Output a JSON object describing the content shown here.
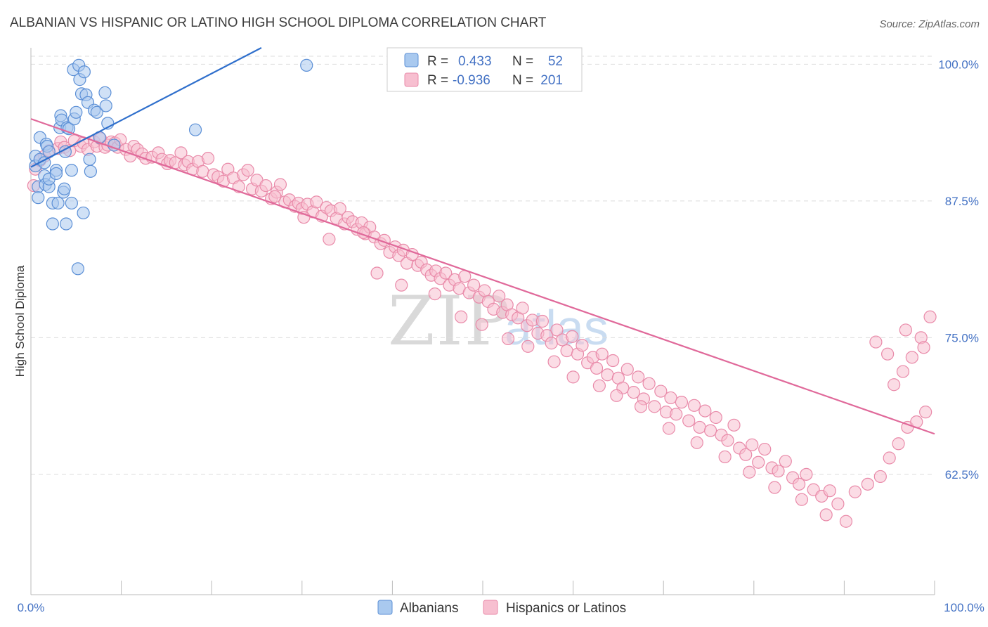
{
  "header": {
    "title": "ALBANIAN VS HISPANIC OR LATINO HIGH SCHOOL DIPLOMA CORRELATION CHART",
    "source": "Source: ZipAtlas.com"
  },
  "watermark": {
    "zip": "ZIP",
    "atlas": "atlas"
  },
  "colors": {
    "albanian_fill": "#a9c9ef",
    "albanian_stroke": "#5b8fd6",
    "albanian_line": "#2f6fcc",
    "hispanic_fill": "#f7bfd0",
    "hispanic_stroke": "#e98aa9",
    "hispanic_line": "#e0699a",
    "tick_label": "#4472c4",
    "grid": "#dddddd"
  },
  "legend_box": {
    "rows": [
      {
        "r_label": "R =",
        "r_value": "0.433",
        "n_label": "N =",
        "n_value": "52"
      },
      {
        "r_label": "R =",
        "r_value": "-0.936",
        "n_label": "N =",
        "n_value": "201"
      }
    ]
  },
  "bottom_legend": {
    "items": [
      "Albanians",
      "Hispanics or Latinos"
    ]
  },
  "chart_data": {
    "type": "scatter",
    "title": "ALBANIAN VS HISPANIC OR LATINO HIGH SCHOOL DIPLOMA CORRELATION CHART",
    "xlabel": "",
    "ylabel": "High School Diploma",
    "xlim": [
      0,
      100
    ],
    "ylim": [
      51.5,
      101.5
    ],
    "x_tick_labels": [
      "0.0%",
      "100.0%"
    ],
    "y_ticks": [
      100.0,
      87.5,
      75.0,
      62.5
    ],
    "y_tick_labels": [
      "100.0%",
      "87.5%",
      "75.0%",
      "62.5%"
    ],
    "grid": true,
    "legend_position": "top-center",
    "series": [
      {
        "name": "Albanians",
        "r": 0.433,
        "n": 52,
        "trend": {
          "x": [
            0,
            25.5
          ],
          "y": [
            90.6,
            101.5
          ]
        },
        "points": [
          [
            0.5,
            91.6
          ],
          [
            0.5,
            90.7
          ],
          [
            0.8,
            88.8
          ],
          [
            0.8,
            87.8
          ],
          [
            1.0,
            91.3
          ],
          [
            1.0,
            93.3
          ],
          [
            1.5,
            91.0
          ],
          [
            1.5,
            89.8
          ],
          [
            1.6,
            89.0
          ],
          [
            1.7,
            92.7
          ],
          [
            1.8,
            92.5
          ],
          [
            2.0,
            88.8
          ],
          [
            2.0,
            89.5
          ],
          [
            2.0,
            92.0
          ],
          [
            2.4,
            87.3
          ],
          [
            2.4,
            85.4
          ],
          [
            2.8,
            90.3
          ],
          [
            2.8,
            90.0
          ],
          [
            3.0,
            87.3
          ],
          [
            3.2,
            94.2
          ],
          [
            3.3,
            95.3
          ],
          [
            3.4,
            94.9
          ],
          [
            3.6,
            88.3
          ],
          [
            3.7,
            88.6
          ],
          [
            3.8,
            92.0
          ],
          [
            3.9,
            85.4
          ],
          [
            4.0,
            94.2
          ],
          [
            4.2,
            94.1
          ],
          [
            4.5,
            87.3
          ],
          [
            4.5,
            90.3
          ],
          [
            4.7,
            99.5
          ],
          [
            4.8,
            95.0
          ],
          [
            5.0,
            95.6
          ],
          [
            5.3,
            99.9
          ],
          [
            5.4,
            98.6
          ],
          [
            5.6,
            97.3
          ],
          [
            5.8,
            86.4
          ],
          [
            5.9,
            99.3
          ],
          [
            6.1,
            97.2
          ],
          [
            6.3,
            96.5
          ],
          [
            6.5,
            91.3
          ],
          [
            6.6,
            90.2
          ],
          [
            7.0,
            95.8
          ],
          [
            7.3,
            95.6
          ],
          [
            7.6,
            93.3
          ],
          [
            8.2,
            97.4
          ],
          [
            8.3,
            96.2
          ],
          [
            8.5,
            94.6
          ],
          [
            9.2,
            92.6
          ],
          [
            18.2,
            94.0
          ],
          [
            30.5,
            99.9
          ],
          [
            5.2,
            81.3
          ]
        ]
      },
      {
        "name": "Hispanics or Latinos",
        "r": -0.936,
        "n": 201,
        "trend": {
          "x": [
            0,
            100
          ],
          "y": [
            95.0,
            66.2
          ]
        },
        "points": [
          [
            0.3,
            88.9
          ],
          [
            0.5,
            90.4
          ],
          [
            1.0,
            91.2
          ],
          [
            1.5,
            91.6
          ],
          [
            2.0,
            92.1
          ],
          [
            3.0,
            92.3
          ],
          [
            3.3,
            92.9
          ],
          [
            3.7,
            92.4
          ],
          [
            4.3,
            92.1
          ],
          [
            4.8,
            93.0
          ],
          [
            5.5,
            92.5
          ],
          [
            5.8,
            92.8
          ],
          [
            6.3,
            92.2
          ],
          [
            7.0,
            92.9
          ],
          [
            7.3,
            92.5
          ],
          [
            7.7,
            93.2
          ],
          [
            8.2,
            92.4
          ],
          [
            8.5,
            92.6
          ],
          [
            8.9,
            92.9
          ],
          [
            9.3,
            92.8
          ],
          [
            9.6,
            92.4
          ],
          [
            9.9,
            93.1
          ],
          [
            10.5,
            92.2
          ],
          [
            11.0,
            91.6
          ],
          [
            11.4,
            92.5
          ],
          [
            11.8,
            92.2
          ],
          [
            12.3,
            91.8
          ],
          [
            12.7,
            91.4
          ],
          [
            13.4,
            91.5
          ],
          [
            14.1,
            91.9
          ],
          [
            14.5,
            91.3
          ],
          [
            15.1,
            90.9
          ],
          [
            15.4,
            91.2
          ],
          [
            16.0,
            91.0
          ],
          [
            16.6,
            91.9
          ],
          [
            17.0,
            90.8
          ],
          [
            17.4,
            91.1
          ],
          [
            17.9,
            90.4
          ],
          [
            18.5,
            91.1
          ],
          [
            19.0,
            90.2
          ],
          [
            19.6,
            91.4
          ],
          [
            20.2,
            89.9
          ],
          [
            20.7,
            89.7
          ],
          [
            21.3,
            89.3
          ],
          [
            21.8,
            90.4
          ],
          [
            22.4,
            89.6
          ],
          [
            23.0,
            88.8
          ],
          [
            23.5,
            89.9
          ],
          [
            24.0,
            90.3
          ],
          [
            24.5,
            88.6
          ],
          [
            25.0,
            89.4
          ],
          [
            25.5,
            88.4
          ],
          [
            26.0,
            88.9
          ],
          [
            26.6,
            87.7
          ],
          [
            27.2,
            88.3
          ],
          [
            27.6,
            89.0
          ],
          [
            28.1,
            87.4
          ],
          [
            28.6,
            87.6
          ],
          [
            29.2,
            87.0
          ],
          [
            29.6,
            87.3
          ],
          [
            30.0,
            86.8
          ],
          [
            30.6,
            87.2
          ],
          [
            31.2,
            86.5
          ],
          [
            31.6,
            87.4
          ],
          [
            32.2,
            86.1
          ],
          [
            32.7,
            86.9
          ],
          [
            33.2,
            86.6
          ],
          [
            33.8,
            85.9
          ],
          [
            34.2,
            86.8
          ],
          [
            34.7,
            85.4
          ],
          [
            35.1,
            86.0
          ],
          [
            35.6,
            85.6
          ],
          [
            36.1,
            84.9
          ],
          [
            36.6,
            85.5
          ],
          [
            37.0,
            84.5
          ],
          [
            37.5,
            85.1
          ],
          [
            38.0,
            84.2
          ],
          [
            38.7,
            83.6
          ],
          [
            39.1,
            83.9
          ],
          [
            39.7,
            82.8
          ],
          [
            40.3,
            83.3
          ],
          [
            40.7,
            82.5
          ],
          [
            41.2,
            83.0
          ],
          [
            41.6,
            81.8
          ],
          [
            42.2,
            82.6
          ],
          [
            42.8,
            81.6
          ],
          [
            43.2,
            81.9
          ],
          [
            43.8,
            81.2
          ],
          [
            44.3,
            80.7
          ],
          [
            44.8,
            81.1
          ],
          [
            45.3,
            80.4
          ],
          [
            45.9,
            80.9
          ],
          [
            46.3,
            79.8
          ],
          [
            46.9,
            80.3
          ],
          [
            47.4,
            79.5
          ],
          [
            48.0,
            80.6
          ],
          [
            48.5,
            79.1
          ],
          [
            49.0,
            79.8
          ],
          [
            49.6,
            78.7
          ],
          [
            50.2,
            79.3
          ],
          [
            50.6,
            78.3
          ],
          [
            51.2,
            77.6
          ],
          [
            51.8,
            78.8
          ],
          [
            52.2,
            77.3
          ],
          [
            52.7,
            78.0
          ],
          [
            53.2,
            77.1
          ],
          [
            53.9,
            76.8
          ],
          [
            54.4,
            77.7
          ],
          [
            54.9,
            76.1
          ],
          [
            55.5,
            76.6
          ],
          [
            56.1,
            75.4
          ],
          [
            56.6,
            76.5
          ],
          [
            57.1,
            75.2
          ],
          [
            57.6,
            74.5
          ],
          [
            58.2,
            75.7
          ],
          [
            58.8,
            74.8
          ],
          [
            59.3,
            73.8
          ],
          [
            59.9,
            75.1
          ],
          [
            60.5,
            73.5
          ],
          [
            61.0,
            74.3
          ],
          [
            61.6,
            72.7
          ],
          [
            62.2,
            73.2
          ],
          [
            62.6,
            72.2
          ],
          [
            63.2,
            73.5
          ],
          [
            63.8,
            71.6
          ],
          [
            64.4,
            72.9
          ],
          [
            65.0,
            71.3
          ],
          [
            65.5,
            70.4
          ],
          [
            66.0,
            72.1
          ],
          [
            66.7,
            70.0
          ],
          [
            67.2,
            71.4
          ],
          [
            67.8,
            69.4
          ],
          [
            68.4,
            70.8
          ],
          [
            69.0,
            68.7
          ],
          [
            69.7,
            70.1
          ],
          [
            70.3,
            68.2
          ],
          [
            70.8,
            69.5
          ],
          [
            71.4,
            68.0
          ],
          [
            72.0,
            69.1
          ],
          [
            72.8,
            67.4
          ],
          [
            73.4,
            68.8
          ],
          [
            74.0,
            66.8
          ],
          [
            74.6,
            68.3
          ],
          [
            75.2,
            66.5
          ],
          [
            75.8,
            67.7
          ],
          [
            76.4,
            66.1
          ],
          [
            77.1,
            65.6
          ],
          [
            77.8,
            67.0
          ],
          [
            78.4,
            64.9
          ],
          [
            79.1,
            64.3
          ],
          [
            79.8,
            65.2
          ],
          [
            80.5,
            63.6
          ],
          [
            81.2,
            64.8
          ],
          [
            82.0,
            63.1
          ],
          [
            82.7,
            62.8
          ],
          [
            83.5,
            63.7
          ],
          [
            84.3,
            62.2
          ],
          [
            85.0,
            61.6
          ],
          [
            85.8,
            62.5
          ],
          [
            86.6,
            61.1
          ],
          [
            87.5,
            60.5
          ],
          [
            88.4,
            61.0
          ],
          [
            89.3,
            59.8
          ],
          [
            90.2,
            58.2
          ],
          [
            27.0,
            87.9
          ],
          [
            30.2,
            86.0
          ],
          [
            33.0,
            84.0
          ],
          [
            36.8,
            84.6
          ],
          [
            38.3,
            80.9
          ],
          [
            41.0,
            79.8
          ],
          [
            44.7,
            79.0
          ],
          [
            47.6,
            76.9
          ],
          [
            49.9,
            76.2
          ],
          [
            52.8,
            74.9
          ],
          [
            55.0,
            74.2
          ],
          [
            57.9,
            72.8
          ],
          [
            60.0,
            71.4
          ],
          [
            62.9,
            70.6
          ],
          [
            64.8,
            69.7
          ],
          [
            67.5,
            68.7
          ],
          [
            70.6,
            66.7
          ],
          [
            73.7,
            65.4
          ],
          [
            76.8,
            64.1
          ],
          [
            79.5,
            62.7
          ],
          [
            82.3,
            61.3
          ],
          [
            85.3,
            60.2
          ],
          [
            88.0,
            58.8
          ],
          [
            91.2,
            60.9
          ],
          [
            92.6,
            61.6
          ],
          [
            94.0,
            62.3
          ],
          [
            95.0,
            64.0
          ],
          [
            96.0,
            65.3
          ],
          [
            97.0,
            66.8
          ],
          [
            98.0,
            67.3
          ],
          [
            99.0,
            68.2
          ],
          [
            95.5,
            70.7
          ],
          [
            96.5,
            71.9
          ],
          [
            97.5,
            73.2
          ],
          [
            98.5,
            75.0
          ],
          [
            99.5,
            76.9
          ],
          [
            93.5,
            74.6
          ],
          [
            94.8,
            73.5
          ],
          [
            96.8,
            75.7
          ],
          [
            98.8,
            74.1
          ]
        ]
      }
    ]
  }
}
